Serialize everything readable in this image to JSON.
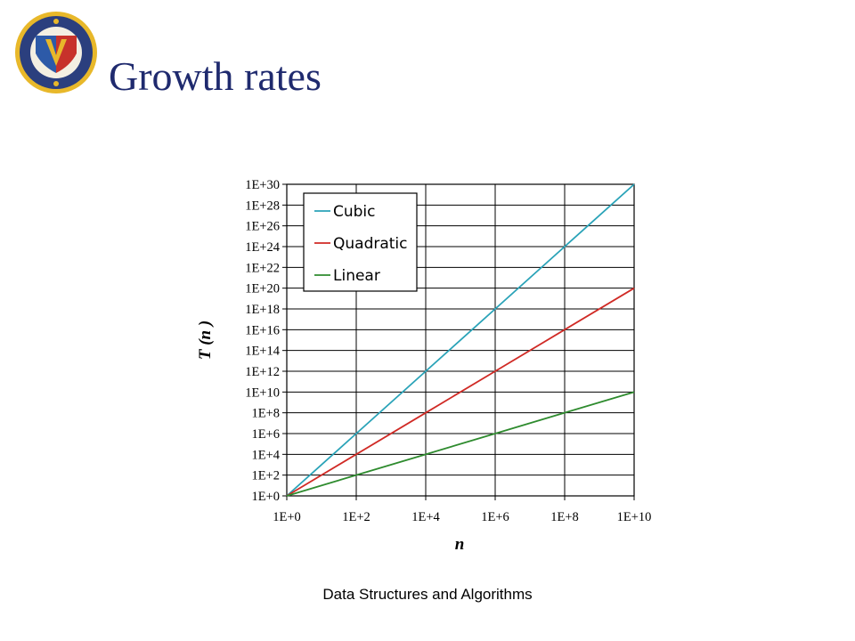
{
  "slide": {
    "title": "Growth rates",
    "footer": "Data Structures and Algorithms"
  },
  "logo": {
    "colors": {
      "ring": "#2b3f7e",
      "shield_red": "#c7322b",
      "shield_blue": "#2d5aa8",
      "gold": "#e8b82a"
    }
  },
  "chart_data": {
    "type": "line",
    "title": "",
    "xlabel": "n",
    "ylabel": "T (n )",
    "x_scale": "log",
    "y_scale": "log",
    "xlim": [
      1,
      10000000000
    ],
    "ylim": [
      1,
      1e+30
    ],
    "x_ticks": [
      "1E+0",
      "1E+2",
      "1E+4",
      "1E+6",
      "1E+8",
      "1E+10"
    ],
    "y_ticks": [
      "1E+0",
      "1E+2",
      "1E+4",
      "1E+6",
      "1E+8",
      "1E+10",
      "1E+12",
      "1E+14",
      "1E+16",
      "1E+18",
      "1E+20",
      "1E+22",
      "1E+24",
      "1E+26",
      "1E+28",
      "1E+30"
    ],
    "grid": true,
    "legend_position": "top-left",
    "series": [
      {
        "name": "Cubic",
        "color": "#2aa3b8",
        "x": [
          1,
          100,
          10000,
          1000000,
          100000000,
          10000000000
        ],
        "y": [
          1,
          1000000,
          1000000000000,
          1e+18,
          1e+24,
          1e+30
        ]
      },
      {
        "name": "Quadratic",
        "color": "#d02a25",
        "x": [
          1,
          100,
          10000,
          1000000,
          100000000,
          10000000000
        ],
        "y": [
          1,
          10000,
          100000000,
          1000000000000,
          10000000000000000,
          1e+20
        ]
      },
      {
        "name": "Linear",
        "color": "#2e8b2e",
        "x": [
          1,
          100,
          10000,
          1000000,
          100000000,
          10000000000
        ],
        "y": [
          1,
          100,
          10000,
          1000000,
          100000000,
          10000000000
        ]
      }
    ]
  }
}
